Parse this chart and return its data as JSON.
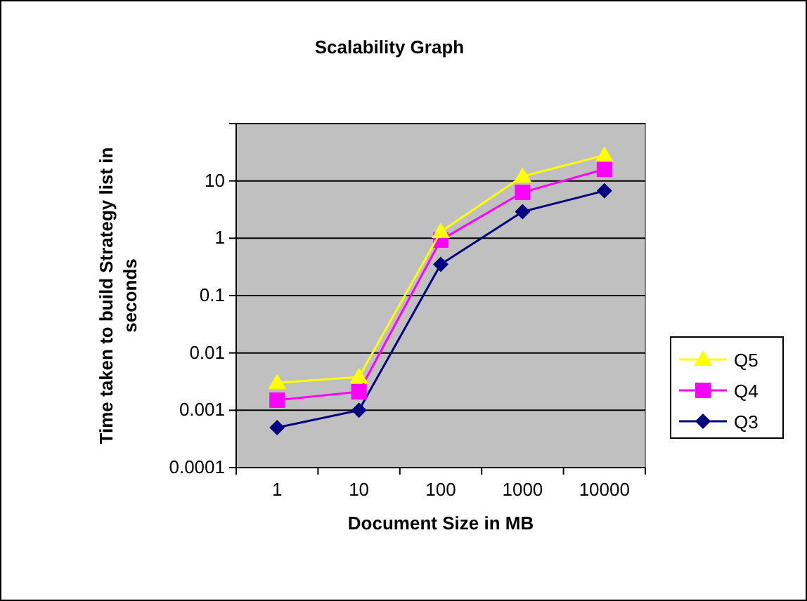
{
  "chart_data": {
    "type": "line",
    "title": "Scalability Graph",
    "xlabel": "Document Size in MB",
    "ylabel": "Time taken to build Strategy list in seconds",
    "categories": [
      "1",
      "10",
      "100",
      "1000",
      "10000"
    ],
    "series": [
      {
        "name": "Q5",
        "color": "#ffff00",
        "marker": "triangle",
        "values": [
          0.003,
          0.0038,
          1.3,
          12,
          28
        ]
      },
      {
        "name": "Q4",
        "color": "#ff00ff",
        "marker": "square",
        "values": [
          0.0015,
          0.0021,
          0.93,
          6.3,
          16
        ]
      },
      {
        "name": "Q3",
        "color": "#000080",
        "marker": "diamond",
        "values": [
          0.0005,
          0.001,
          0.35,
          2.9,
          6.7
        ]
      }
    ],
    "log": "y",
    "ylim": [
      0.0001,
      100
    ],
    "yticks": [
      0.0001,
      0.001,
      0.01,
      0.1,
      1,
      10,
      {
        "value": 100,
        "label": null
      }
    ],
    "grid": "y",
    "legend": "right"
  }
}
